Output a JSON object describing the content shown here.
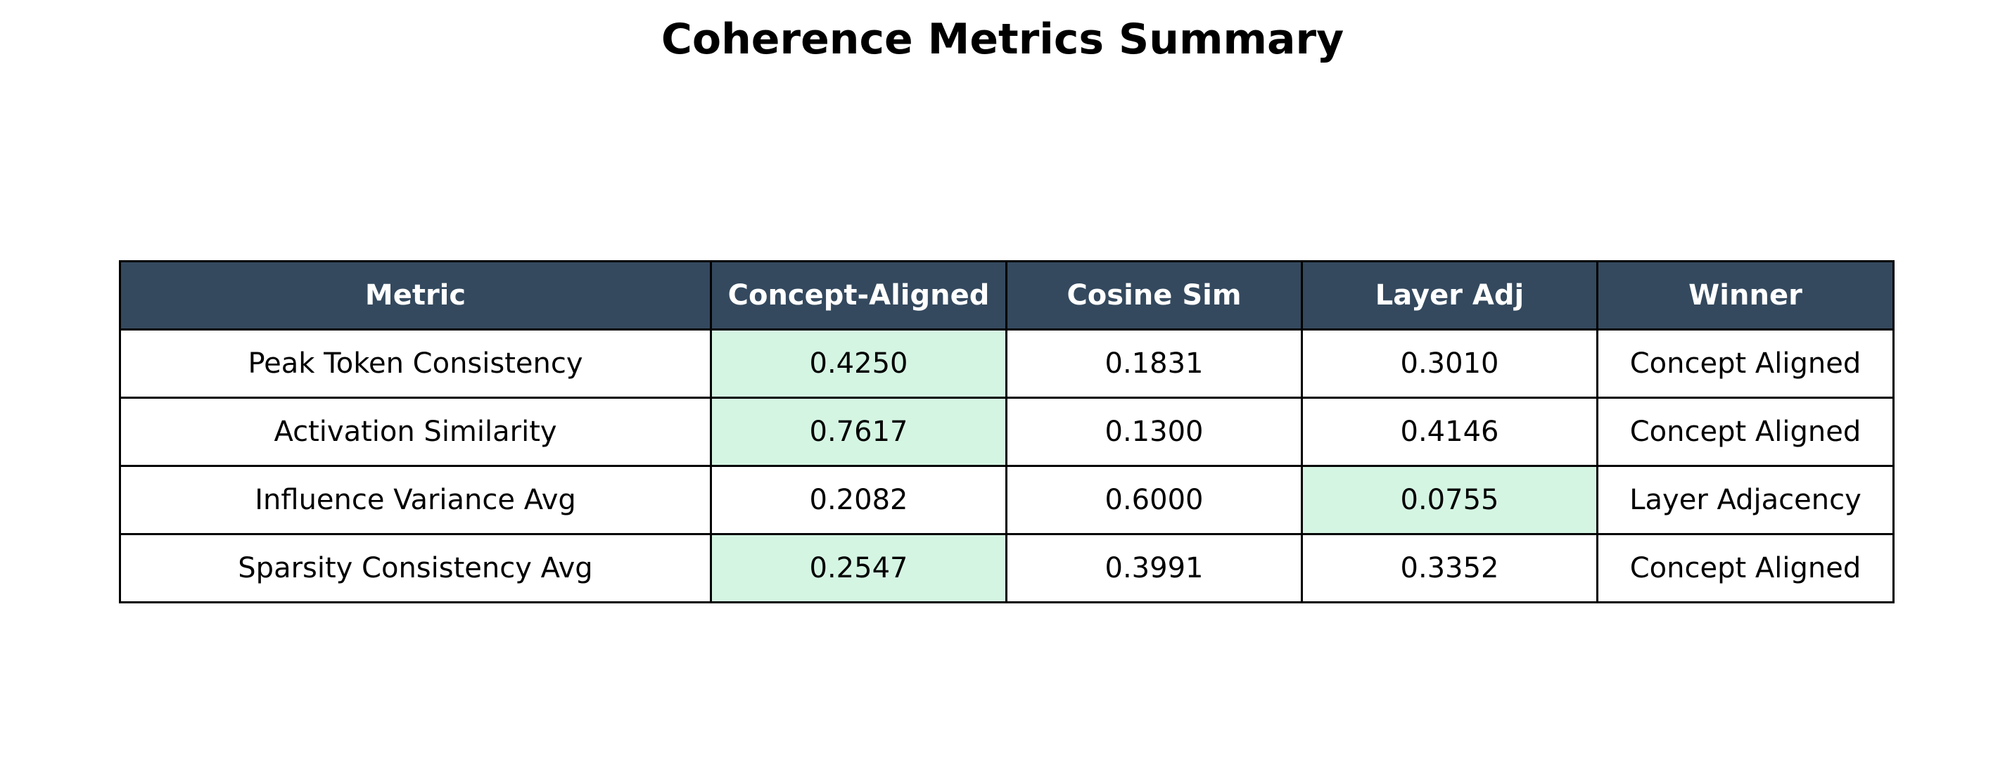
{
  "chart_data": {
    "type": "table",
    "title": "Coherence Metrics Summary",
    "columns": [
      "Metric",
      "Concept-Aligned",
      "Cosine Sim",
      "Layer Adj",
      "Winner"
    ],
    "rows": [
      {
        "metric": "Peak Token Consistency",
        "values": [
          "0.4250",
          "0.1831",
          "0.3010"
        ],
        "winner": "Concept Aligned",
        "highlight": 0
      },
      {
        "metric": "Activation Similarity",
        "values": [
          "0.7617",
          "0.1300",
          "0.4146"
        ],
        "winner": "Concept Aligned",
        "highlight": 0
      },
      {
        "metric": "Influence Variance Avg",
        "values": [
          "0.2082",
          "0.6000",
          "0.0755"
        ],
        "winner": "Layer Adjacency",
        "highlight": 2
      },
      {
        "metric": "Sparsity Consistency Avg",
        "values": [
          "0.2547",
          "0.3991",
          "0.3352"
        ],
        "winner": "Concept Aligned",
        "highlight": 0
      }
    ]
  },
  "colors": {
    "header_bg": "#34495e",
    "header_text": "#ffffff",
    "highlight_bg": "#d5f5e3",
    "cell_bg": "#ffffff",
    "border": "#000000"
  }
}
